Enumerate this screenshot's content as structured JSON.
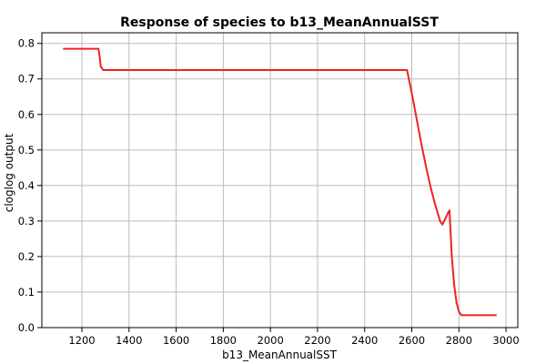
{
  "chart_data": {
    "type": "line",
    "title": "Response of species to b13_MeanAnnualSST",
    "xlabel": "b13_MeanAnnualSST",
    "ylabel": "cloglog output",
    "xlim": [
      1030,
      3050
    ],
    "ylim": [
      0,
      0.83
    ],
    "xticks": [
      1200,
      1400,
      1600,
      1800,
      2000,
      2200,
      2400,
      2600,
      2800,
      3000
    ],
    "yticks": [
      0.0,
      0.1,
      0.2,
      0.3,
      0.4,
      0.5,
      0.6,
      0.7,
      0.8
    ],
    "xtick_labels": [
      "1200",
      "1400",
      "1600",
      "1800",
      "2000",
      "2200",
      "2400",
      "2600",
      "2800",
      "3000"
    ],
    "ytick_labels": [
      "0.0",
      "0.1",
      "0.2",
      "0.3",
      "0.4",
      "0.5",
      "0.6",
      "0.7",
      "0.8"
    ],
    "grid": true,
    "colors": {
      "line": "#ee2222",
      "grid": "#bbbbbb",
      "axis": "#000000"
    },
    "series": [
      {
        "x": [
          1120,
          1200,
          1270,
          1275,
          1280,
          1290,
          1400,
          1800,
          2200,
          2580,
          2600,
          2620,
          2640,
          2660,
          2680,
          2700,
          2720,
          2730,
          2745,
          2755,
          2760,
          2770,
          2780,
          2790,
          2800,
          2810,
          2850,
          2900,
          2960
        ],
        "y": [
          0.785,
          0.785,
          0.785,
          0.765,
          0.735,
          0.725,
          0.725,
          0.725,
          0.725,
          0.725,
          0.66,
          0.59,
          0.52,
          0.455,
          0.395,
          0.345,
          0.3,
          0.29,
          0.31,
          0.325,
          0.33,
          0.2,
          0.12,
          0.07,
          0.045,
          0.035,
          0.035,
          0.035,
          0.035
        ]
      }
    ]
  }
}
